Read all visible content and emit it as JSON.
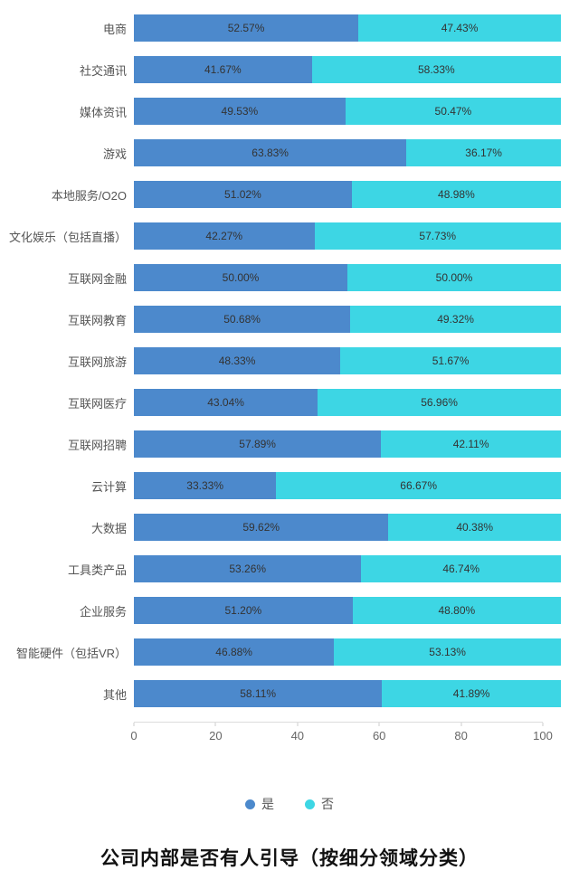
{
  "chart_data": {
    "type": "bar",
    "orientation": "horizontal",
    "stacked": true,
    "title": "公司内部是否有人引导（按细分领域分类）",
    "xlabel": "",
    "ylabel": "",
    "xlim": [
      0,
      100
    ],
    "x_ticks": [
      0,
      20,
      40,
      60,
      80,
      100
    ],
    "grid": false,
    "legend_position": "bottom",
    "categories": [
      "电商",
      "社交通讯",
      "媒体资讯",
      "游戏",
      "本地服务/O2O",
      "文化娱乐（包括直播）",
      "互联网金融",
      "互联网教育",
      "互联网旅游",
      "互联网医疗",
      "互联网招聘",
      "云计算",
      "大数据",
      "工具类产品",
      "企业服务",
      "智能硬件（包括VR）",
      "其他"
    ],
    "series": [
      {
        "name": "是",
        "color": "#4C89CC",
        "values": [
          52.57,
          41.67,
          49.53,
          63.83,
          51.02,
          42.27,
          50.0,
          50.68,
          48.33,
          43.04,
          57.89,
          33.33,
          59.62,
          53.26,
          51.2,
          46.88,
          58.11
        ]
      },
      {
        "name": "否",
        "color": "#3DD6E4",
        "values": [
          47.43,
          58.33,
          50.47,
          36.17,
          48.98,
          57.73,
          50.0,
          49.32,
          51.67,
          56.96,
          42.11,
          66.67,
          40.38,
          46.74,
          48.8,
          53.13,
          41.89
        ]
      }
    ]
  },
  "title": "公司内部是否有人引导（按细分领域分类）"
}
